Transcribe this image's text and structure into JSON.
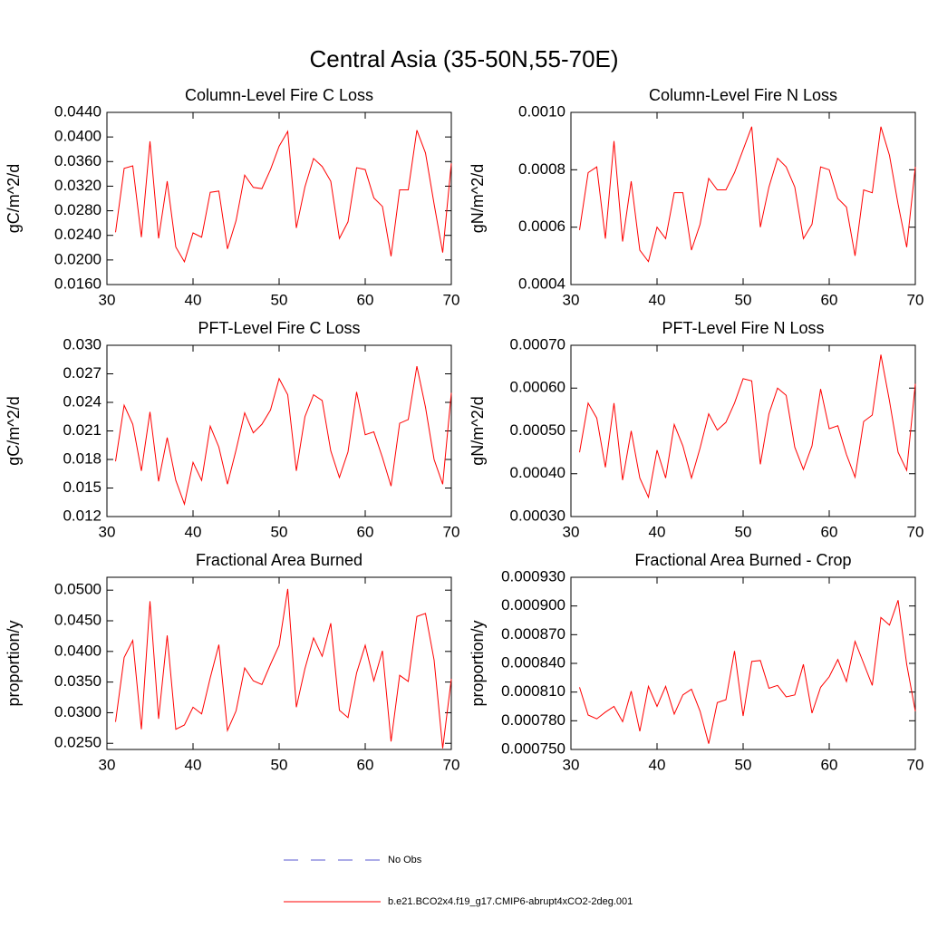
{
  "figure": {
    "title": "Central Asia (35-50N,55-70E)",
    "legend": [
      {
        "name": "No Obs",
        "color": "#5a5ad2",
        "dash": true
      },
      {
        "name": "b.e21.BCO2x4.f19_g17.CMIP6-abrupt4xCO2-2deg.001",
        "color": "#ff0000",
        "dash": false
      }
    ]
  },
  "chart_data": [
    {
      "type": "line",
      "title": "Column-Level Fire C Loss",
      "y_label": "gC/m^2/d",
      "x": [
        31,
        32,
        33,
        34,
        35,
        36,
        37,
        38,
        39,
        40,
        41,
        42,
        43,
        44,
        45,
        46,
        47,
        48,
        49,
        50,
        51,
        52,
        53,
        54,
        55,
        56,
        57,
        58,
        59,
        60,
        61,
        62,
        63,
        64,
        65,
        66,
        67,
        68,
        69,
        70
      ],
      "xlim": [
        30,
        70
      ],
      "xticks": [
        30,
        40,
        50,
        60,
        70
      ],
      "ylim": [
        0.016,
        0.044
      ],
      "yticks": [
        {
          "value": 0.016,
          "label": "0.0160"
        },
        {
          "value": 0.02,
          "label": "0.0200"
        },
        {
          "value": 0.024,
          "label": "0.0240"
        },
        {
          "value": 0.028,
          "label": "0.0280"
        },
        {
          "value": 0.032,
          "label": "0.0320"
        },
        {
          "value": 0.036,
          "label": "0.0360"
        },
        {
          "value": 0.04,
          "label": "0.0400"
        },
        {
          "value": 0.044,
          "label": "0.0440"
        }
      ],
      "series": [
        {
          "color": "#ff0000",
          "values": [
            0.0245,
            0.0349,
            0.0353,
            0.0237,
            0.0393,
            0.0235,
            0.0328,
            0.0221,
            0.0197,
            0.0244,
            0.0237,
            0.031,
            0.0312,
            0.0218,
            0.0264,
            0.0338,
            0.0318,
            0.0316,
            0.0347,
            0.0385,
            0.0409,
            0.0252,
            0.0319,
            0.0365,
            0.0352,
            0.0328,
            0.0235,
            0.0262,
            0.035,
            0.0347,
            0.0301,
            0.0287,
            0.0206,
            0.0314,
            0.0314,
            0.0411,
            0.0374,
            0.0291,
            0.0212,
            0.0357
          ]
        }
      ]
    },
    {
      "type": "line",
      "title": "Column-Level Fire N Loss",
      "y_label": "gN/m^2/d",
      "x": [
        31,
        32,
        33,
        34,
        35,
        36,
        37,
        38,
        39,
        40,
        41,
        42,
        43,
        44,
        45,
        46,
        47,
        48,
        49,
        50,
        51,
        52,
        53,
        54,
        55,
        56,
        57,
        58,
        59,
        60,
        61,
        62,
        63,
        64,
        65,
        66,
        67,
        68,
        69,
        70
      ],
      "xlim": [
        30,
        70
      ],
      "xticks": [
        30,
        40,
        50,
        60,
        70
      ],
      "ylim": [
        0.0004,
        0.001
      ],
      "yticks": [
        0.0004,
        0.0006,
        0.0008,
        {
          "value": 0.001,
          "label": "0.0010"
        }
      ],
      "series": [
        {
          "color": "#ff0000",
          "values": [
            0.00059,
            0.00079,
            0.00081,
            0.00056,
            0.0009,
            0.00055,
            0.00076,
            0.00052,
            0.00048,
            0.0006,
            0.00056,
            0.00072,
            0.00072,
            0.00052,
            0.00061,
            0.00077,
            0.00073,
            0.00073,
            0.00079,
            0.00087,
            0.00095,
            0.0006,
            0.00074,
            0.00084,
            0.00081,
            0.00074,
            0.00056,
            0.00061,
            0.00081,
            0.0008,
            0.0007,
            0.00067,
            0.0005,
            0.00073,
            0.00072,
            0.00095,
            0.00085,
            0.00068,
            0.00053,
            0.00081
          ]
        }
      ]
    },
    {
      "type": "line",
      "title": "PFT-Level Fire C Loss",
      "y_label": "gC/m^2/d",
      "x": [
        31,
        32,
        33,
        34,
        35,
        36,
        37,
        38,
        39,
        40,
        41,
        42,
        43,
        44,
        45,
        46,
        47,
        48,
        49,
        50,
        51,
        52,
        53,
        54,
        55,
        56,
        57,
        58,
        59,
        60,
        61,
        62,
        63,
        64,
        65,
        66,
        67,
        68,
        69,
        70
      ],
      "xlim": [
        30,
        70
      ],
      "xticks": [
        30,
        40,
        50,
        60,
        70
      ],
      "ylim": [
        0.012,
        0.03
      ],
      "yticks": [
        0.012,
        0.015,
        0.018,
        0.021,
        0.024,
        0.027,
        {
          "value": 0.03,
          "label": "0.030"
        }
      ],
      "series": [
        {
          "color": "#ff0000",
          "values": [
            0.0178,
            0.0237,
            0.0217,
            0.0168,
            0.023,
            0.0157,
            0.0203,
            0.0158,
            0.0133,
            0.0177,
            0.0158,
            0.0215,
            0.0193,
            0.0154,
            0.019,
            0.0229,
            0.0208,
            0.0217,
            0.0232,
            0.0265,
            0.0248,
            0.0168,
            0.0225,
            0.0248,
            0.0242,
            0.0189,
            0.0161,
            0.0188,
            0.0251,
            0.0206,
            0.0209,
            0.0182,
            0.0152,
            0.0218,
            0.0222,
            0.0278,
            0.0235,
            0.018,
            0.0154,
            0.025
          ]
        }
      ]
    },
    {
      "type": "line",
      "title": "PFT-Level Fire N Loss",
      "y_label": "gN/m^2/d",
      "x": [
        31,
        32,
        33,
        34,
        35,
        36,
        37,
        38,
        39,
        40,
        41,
        42,
        43,
        44,
        45,
        46,
        47,
        48,
        49,
        50,
        51,
        52,
        53,
        54,
        55,
        56,
        57,
        58,
        59,
        60,
        61,
        62,
        63,
        64,
        65,
        66,
        67,
        68,
        69,
        70
      ],
      "xlim": [
        30,
        70
      ],
      "xticks": [
        30,
        40,
        50,
        60,
        70
      ],
      "ylim": [
        0.0003,
        0.0007
      ],
      "yticks": [
        {
          "value": 0.0003,
          "label": "0.00030"
        },
        {
          "value": 0.0004,
          "label": "0.00040"
        },
        {
          "value": 0.0005,
          "label": "0.00050"
        },
        {
          "value": 0.0006,
          "label": "0.00060"
        },
        {
          "value": 0.0007,
          "label": "0.00070"
        }
      ],
      "series": [
        {
          "color": "#ff0000",
          "values": [
            0.00045,
            0.000565,
            0.00053,
            0.000415,
            0.000565,
            0.000385,
            0.0005,
            0.00039,
            0.000345,
            0.000455,
            0.00039,
            0.000515,
            0.000465,
            0.00039,
            0.00046,
            0.00054,
            0.000502,
            0.00052,
            0.000565,
            0.000622,
            0.000617,
            0.000422,
            0.00054,
            0.0006,
            0.000583,
            0.000462,
            0.00041,
            0.000465,
            0.000598,
            0.000505,
            0.000512,
            0.000445,
            0.000392,
            0.000522,
            0.000537,
            0.000678,
            0.00057,
            0.00045,
            0.000408,
            0.00061
          ]
        }
      ]
    },
    {
      "type": "line",
      "title": "Fractional Area Burned",
      "y_label": "proportion/y",
      "x": [
        31,
        32,
        33,
        34,
        35,
        36,
        37,
        38,
        39,
        40,
        41,
        42,
        43,
        44,
        45,
        46,
        47,
        48,
        49,
        50,
        51,
        52,
        53,
        54,
        55,
        56,
        57,
        58,
        59,
        60,
        61,
        62,
        63,
        64,
        65,
        66,
        67,
        68,
        69,
        70
      ],
      "xlim": [
        30,
        70
      ],
      "xticks": [
        30,
        40,
        50,
        60,
        70
      ],
      "ylim": [
        0.024,
        0.0521
      ],
      "yticks": [
        {
          "value": 0.025,
          "label": "0.0250"
        },
        {
          "value": 0.03,
          "label": "0.0300"
        },
        {
          "value": 0.035,
          "label": "0.0350"
        },
        {
          "value": 0.04,
          "label": "0.0400"
        },
        {
          "value": 0.045,
          "label": "0.0450"
        },
        {
          "value": 0.05,
          "label": "0.0500"
        }
      ],
      "series": [
        {
          "color": "#ff0000",
          "values": [
            0.0285,
            0.039,
            0.0418,
            0.0273,
            0.0482,
            0.029,
            0.0426,
            0.0273,
            0.028,
            0.0309,
            0.0298,
            0.0357,
            0.0411,
            0.0271,
            0.0303,
            0.0373,
            0.0352,
            0.0346,
            0.0379,
            0.041,
            0.0502,
            0.0309,
            0.0372,
            0.0422,
            0.0392,
            0.0446,
            0.0304,
            0.0292,
            0.0365,
            0.041,
            0.0352,
            0.0401,
            0.0253,
            0.0361,
            0.0351,
            0.0457,
            0.0462,
            0.0386,
            0.0242,
            0.0355
          ]
        }
      ]
    },
    {
      "type": "line",
      "title": "Fractional Area Burned - Crop",
      "y_label": "proportion/y",
      "x": [
        31,
        32,
        33,
        34,
        35,
        36,
        37,
        38,
        39,
        40,
        41,
        42,
        43,
        44,
        45,
        46,
        47,
        48,
        49,
        50,
        51,
        52,
        53,
        54,
        55,
        56,
        57,
        58,
        59,
        60,
        61,
        62,
        63,
        64,
        65,
        66,
        67,
        68,
        69,
        70
      ],
      "xlim": [
        30,
        70
      ],
      "xticks": [
        30,
        40,
        50,
        60,
        70
      ],
      "ylim": [
        0.00075,
        0.00093
      ],
      "yticks": [
        {
          "value": 0.00075,
          "label": "0.000750"
        },
        {
          "value": 0.00078,
          "label": "0.000780"
        },
        {
          "value": 0.00081,
          "label": "0.000810"
        },
        {
          "value": 0.00084,
          "label": "0.000840"
        },
        {
          "value": 0.00087,
          "label": "0.000870"
        },
        {
          "value": 0.0009,
          "label": "0.000900"
        },
        {
          "value": 0.00093,
          "label": "0.000930"
        }
      ],
      "series": [
        {
          "color": "#ff0000",
          "values": [
            0.000815,
            0.000786,
            0.000782,
            0.000789,
            0.000795,
            0.000779,
            0.000811,
            0.000769,
            0.000816,
            0.000795,
            0.000816,
            0.000787,
            0.000807,
            0.000813,
            0.00079,
            0.000756,
            0.000799,
            0.000802,
            0.000853,
            0.000785,
            0.000842,
            0.000843,
            0.000814,
            0.000817,
            0.000805,
            0.000807,
            0.000839,
            0.000788,
            0.000815,
            0.000826,
            0.000844,
            0.000821,
            0.000863,
            0.00084,
            0.000817,
            0.000888,
            0.00088,
            0.000906,
            0.000839,
            0.00079
          ]
        }
      ]
    }
  ]
}
